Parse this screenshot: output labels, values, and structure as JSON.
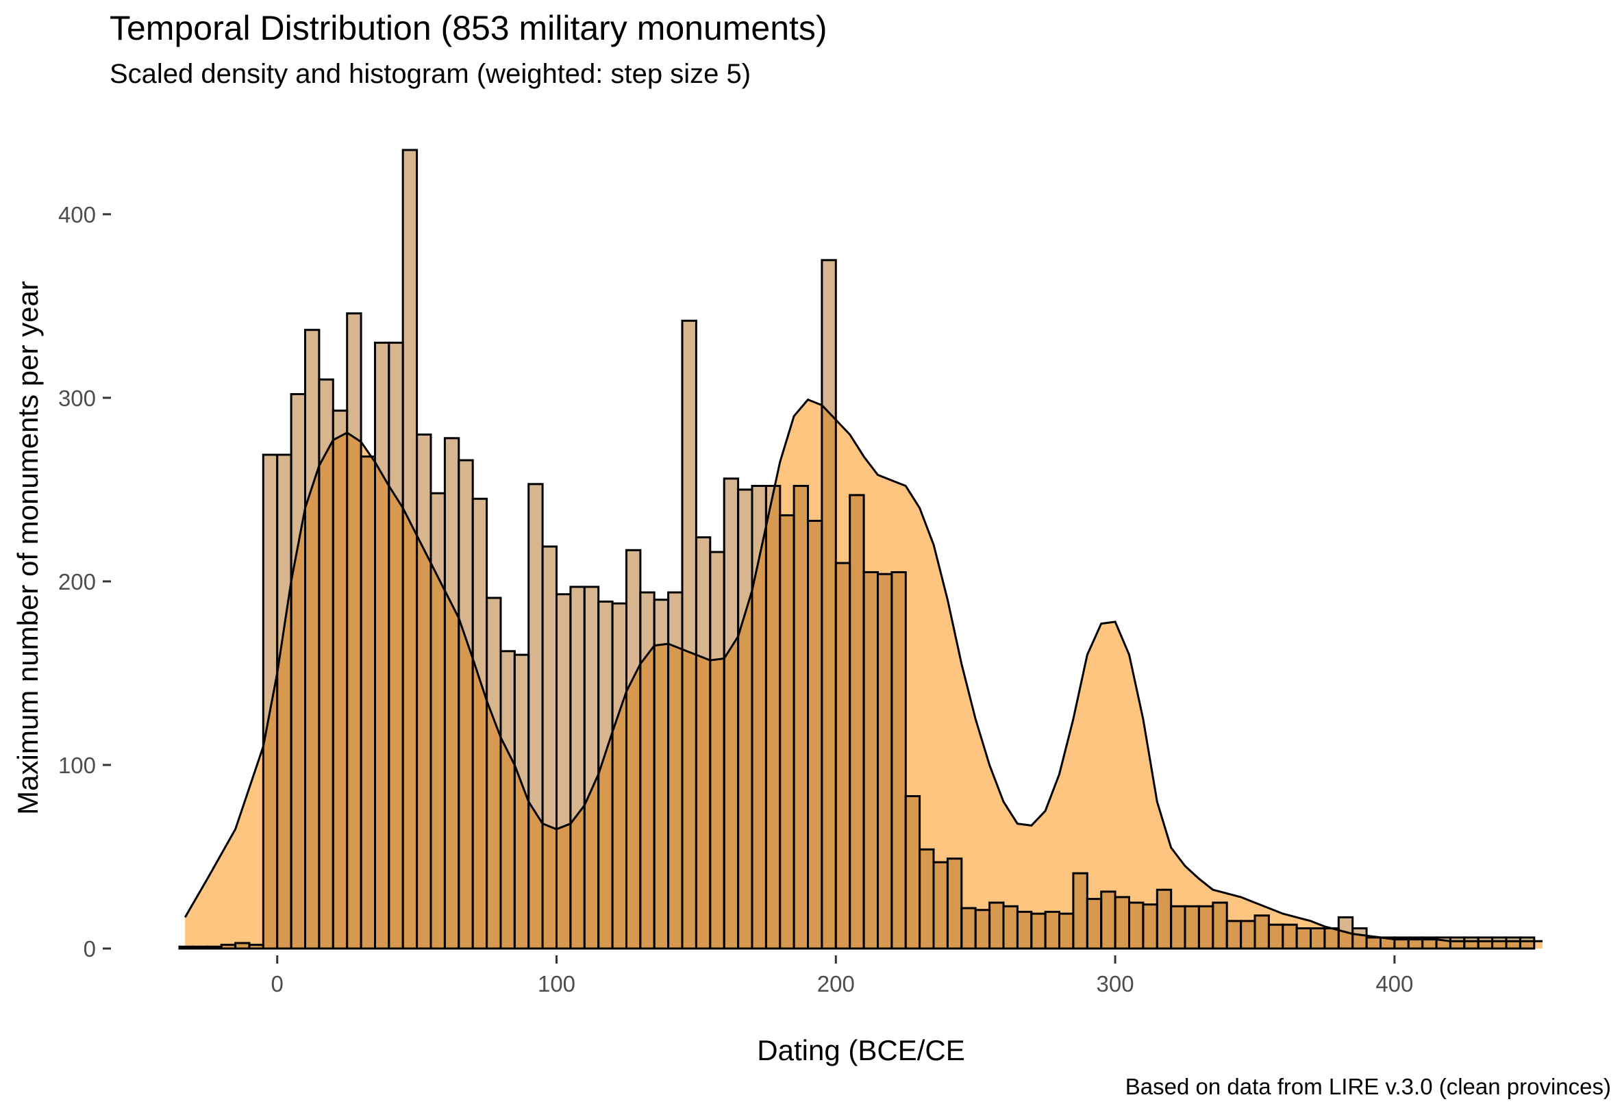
{
  "chart_data": {
    "type": "bar",
    "title": "Temporal Distribution (853 military monuments)",
    "subtitle": "Scaled density and histogram (weighted: step size 5)",
    "xlabel": "Dating (BCE/CE",
    "ylabel": "Maximum number of monuments per year",
    "caption": "Based on data from LIRE v.3.0 (clean provinces)",
    "xlim": [
      -35,
      453
    ],
    "ylim": [
      0,
      435
    ],
    "x_ticks": [
      0,
      100,
      200,
      300,
      400
    ],
    "y_ticks": [
      0,
      100,
      200,
      300,
      400
    ],
    "grid": false,
    "bin_width": 5,
    "histogram": {
      "bin_starts": [
        -35,
        -30,
        -25,
        -20,
        -15,
        -10,
        -5,
        0,
        5,
        10,
        15,
        20,
        25,
        30,
        35,
        40,
        45,
        50,
        55,
        60,
        65,
        70,
        75,
        80,
        85,
        90,
        95,
        100,
        105,
        110,
        115,
        120,
        125,
        130,
        135,
        140,
        145,
        150,
        155,
        160,
        165,
        170,
        175,
        180,
        185,
        190,
        195,
        200,
        205,
        210,
        215,
        220,
        225,
        230,
        235,
        240,
        245,
        250,
        255,
        260,
        265,
        270,
        275,
        280,
        285,
        290,
        295,
        300,
        305,
        310,
        315,
        320,
        325,
        330,
        335,
        340,
        345,
        350,
        355,
        360,
        365,
        370,
        375,
        380,
        385,
        390,
        395,
        400,
        405,
        410,
        415,
        420,
        425,
        430,
        435,
        440,
        445
      ],
      "counts": [
        1,
        1,
        1,
        2,
        3,
        2,
        269,
        269,
        302,
        337,
        310,
        293,
        346,
        268,
        330,
        330,
        435,
        280,
        248,
        278,
        266,
        245,
        191,
        162,
        160,
        253,
        219,
        193,
        197,
        197,
        189,
        188,
        217,
        194,
        190,
        194,
        342,
        224,
        216,
        256,
        250,
        252,
        252,
        236,
        252,
        233,
        375,
        210,
        247,
        205,
        204,
        205,
        83,
        54,
        47,
        49,
        22,
        21,
        25,
        23,
        20,
        19,
        20,
        19,
        41,
        27,
        31,
        28,
        25,
        24,
        32,
        23,
        23,
        23,
        25,
        15,
        15,
        18,
        13,
        13,
        11,
        11,
        11,
        17,
        11,
        6,
        6,
        6,
        6,
        6,
        6,
        6,
        6,
        6,
        6,
        6,
        6
      ],
      "color": "#c4a07f",
      "border": "#000000"
    },
    "density": {
      "x": [
        -33,
        -25,
        -15,
        -5,
        0,
        5,
        10,
        15,
        20,
        25,
        30,
        35,
        40,
        45,
        50,
        55,
        60,
        65,
        70,
        75,
        80,
        85,
        90,
        95,
        100,
        105,
        110,
        115,
        120,
        125,
        130,
        135,
        140,
        145,
        150,
        155,
        160,
        165,
        170,
        175,
        180,
        185,
        190,
        195,
        200,
        205,
        210,
        215,
        220,
        225,
        230,
        235,
        240,
        245,
        250,
        255,
        260,
        265,
        270,
        275,
        280,
        285,
        290,
        295,
        300,
        305,
        310,
        315,
        320,
        325,
        330,
        335,
        340,
        345,
        350,
        355,
        360,
        365,
        370,
        375,
        380,
        385,
        390,
        395,
        400,
        405,
        410,
        415,
        420,
        425,
        430,
        435,
        440,
        445,
        450,
        453
      ],
      "y": [
        17,
        38,
        65,
        110,
        150,
        200,
        240,
        263,
        277,
        281,
        276,
        265,
        252,
        240,
        225,
        210,
        195,
        180,
        158,
        135,
        115,
        100,
        80,
        68,
        65,
        68,
        78,
        95,
        118,
        140,
        155,
        165,
        166,
        163,
        160,
        157,
        158,
        170,
        195,
        230,
        265,
        290,
        299,
        296,
        288,
        280,
        268,
        258,
        255,
        252,
        240,
        220,
        190,
        155,
        125,
        100,
        80,
        68,
        67,
        75,
        95,
        125,
        160,
        177,
        178,
        160,
        125,
        80,
        55,
        45,
        38,
        32,
        30,
        28,
        25,
        22,
        19,
        17,
        15,
        12,
        10,
        8,
        7,
        6,
        5,
        5,
        5,
        5,
        4,
        4,
        4,
        4,
        4,
        4,
        4,
        4
      ],
      "color": "#fec581",
      "line": "#000000"
    }
  }
}
